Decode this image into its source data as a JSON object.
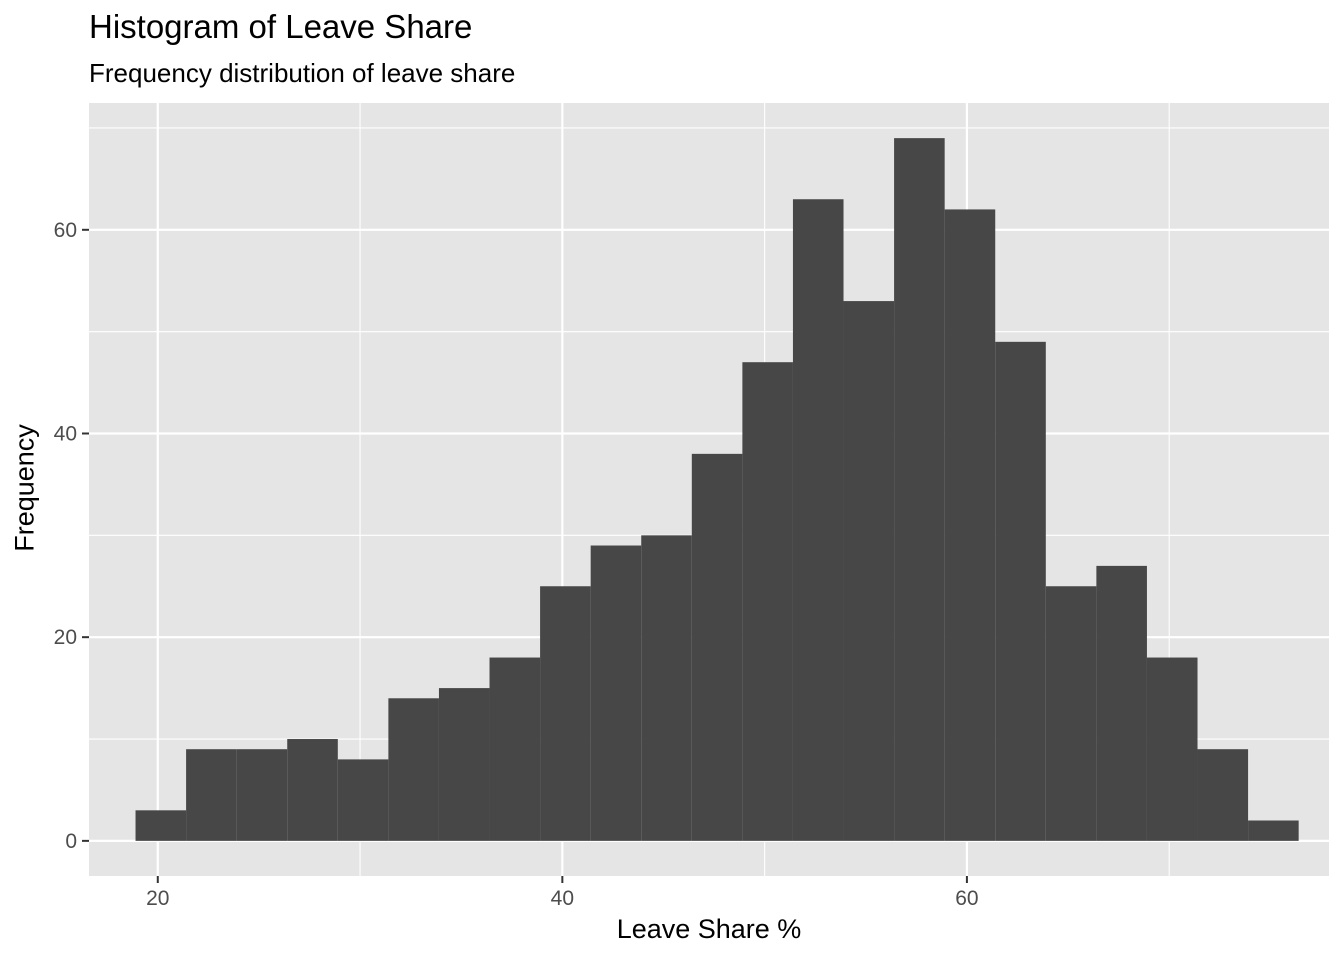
{
  "chart_data": {
    "type": "bar",
    "subtype": "histogram",
    "title": "Histogram of Leave Share",
    "subtitle": "Frequency distribution of leave share",
    "xlabel": "Leave Share %",
    "ylabel": "Frequency",
    "xlim": [
      16.6,
      77.9
    ],
    "ylim": [
      -3.45,
      72.45
    ],
    "x_ticks": [
      20,
      40,
      60
    ],
    "y_ticks": [
      0,
      20,
      40,
      60
    ],
    "grid": true,
    "legend": "none",
    "bins": [
      {
        "x0": 18.9,
        "x1": 21.4,
        "count": 3
      },
      {
        "x0": 21.4,
        "x1": 23.9,
        "count": 9
      },
      {
        "x0": 23.9,
        "x1": 26.4,
        "count": 9
      },
      {
        "x0": 26.4,
        "x1": 28.9,
        "count": 10
      },
      {
        "x0": 28.9,
        "x1": 31.4,
        "count": 8
      },
      {
        "x0": 31.4,
        "x1": 33.9,
        "count": 14
      },
      {
        "x0": 33.9,
        "x1": 36.4,
        "count": 15
      },
      {
        "x0": 36.4,
        "x1": 38.9,
        "count": 18
      },
      {
        "x0": 38.9,
        "x1": 41.4,
        "count": 25
      },
      {
        "x0": 41.4,
        "x1": 43.9,
        "count": 29
      },
      {
        "x0": 43.9,
        "x1": 46.4,
        "count": 30
      },
      {
        "x0": 46.4,
        "x1": 48.9,
        "count": 38
      },
      {
        "x0": 48.9,
        "x1": 51.4,
        "count": 47
      },
      {
        "x0": 51.4,
        "x1": 53.9,
        "count": 63
      },
      {
        "x0": 53.9,
        "x1": 56.4,
        "count": 53
      },
      {
        "x0": 56.4,
        "x1": 58.9,
        "count": 69
      },
      {
        "x0": 58.9,
        "x1": 61.4,
        "count": 62
      },
      {
        "x0": 61.4,
        "x1": 63.9,
        "count": 49
      },
      {
        "x0": 63.9,
        "x1": 66.4,
        "count": 25
      },
      {
        "x0": 66.4,
        "x1": 68.9,
        "count": 27
      },
      {
        "x0": 68.9,
        "x1": 71.4,
        "count": 18
      },
      {
        "x0": 71.4,
        "x1": 73.9,
        "count": 9
      },
      {
        "x0": 73.9,
        "x1": 76.4,
        "count": 2
      }
    ],
    "colors": {
      "bar_fill": "#474747",
      "panel_background": "#E5E5E5",
      "grid_major": "#FFFFFF",
      "tick_label": "#4D4D4D",
      "tick_mark": "#333333"
    }
  }
}
